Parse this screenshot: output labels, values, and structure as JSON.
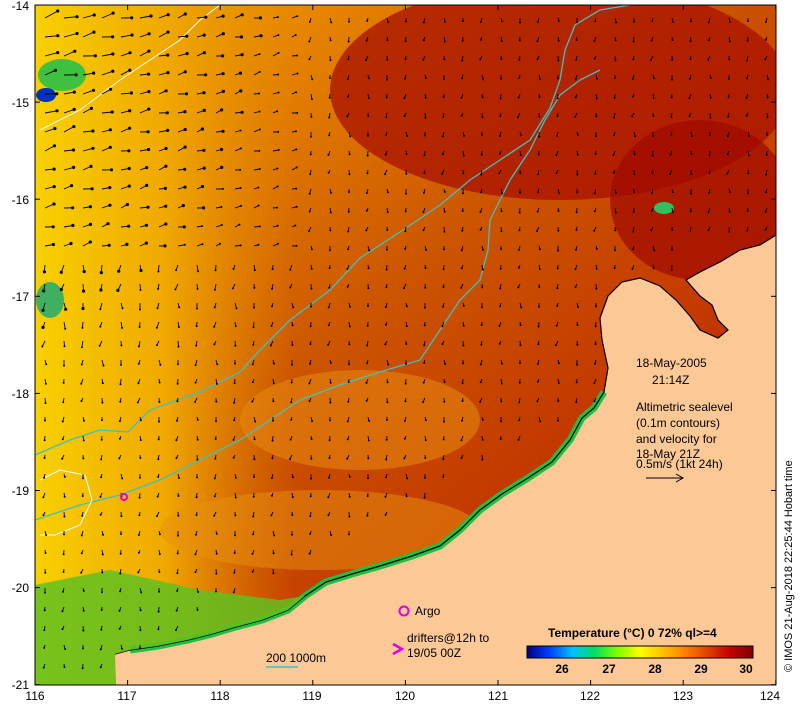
{
  "map": {
    "x_ticks": [
      "116",
      "117",
      "118",
      "119",
      "120",
      "121",
      "122",
      "123",
      "124"
    ],
    "y_ticks": [
      "-14",
      "-15",
      "-16",
      "-17",
      "-18",
      "-19",
      "-20",
      "-21"
    ]
  },
  "annotation": {
    "date": "18-May-2005",
    "time": "21:14Z",
    "desc_lines": [
      "Altimetric sealevel",
      "(0.1m contours)",
      "and velocity for",
      "18-May 21Z",
      "0.5m/s (1kt 24h)"
    ]
  },
  "legend": {
    "argo_label": "Argo",
    "drifters_line1": "drifters@12h to",
    "drifters_line2": "19/05 00Z",
    "bathy_label": "200  1000m"
  },
  "colorbar": {
    "title": "Temperature (°C) 0 72% ql>=4",
    "ticks": [
      "26",
      "27",
      "28",
      "29",
      "30"
    ],
    "colors": [
      "#000080",
      "#0040ff",
      "#00c0ff",
      "#00e060",
      "#80ff00",
      "#ffff00",
      "#ffc000",
      "#ff8000",
      "#e04000",
      "#c00000",
      "#800000"
    ]
  },
  "credit": "© IMOS 21-Aug-2018 22:25:44 Hobart time",
  "colors": {
    "land": "#fcc896",
    "contour_cyan": "#40c0c0",
    "argo": "#e000e0"
  }
}
